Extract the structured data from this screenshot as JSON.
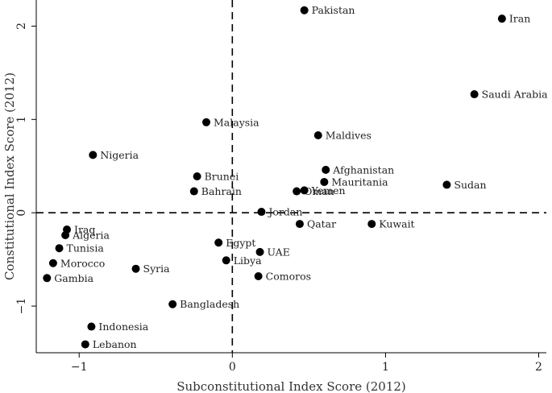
{
  "chart_data": {
    "type": "scatter",
    "xlabel": "Subconstitutional Index Score (2012)",
    "ylabel": "Constitutional Index Score (2012)",
    "xlim": [
      -1.28,
      2.05
    ],
    "ylim": [
      -1.5,
      2.28
    ],
    "xticks": [
      -1,
      0,
      1,
      2
    ],
    "yticks": [
      -1,
      0,
      1,
      2
    ],
    "reference_lines": {
      "x": 0,
      "y": 0,
      "style": "dashed"
    },
    "points": [
      {
        "label": "Pakistan",
        "x": 0.47,
        "y": 2.17
      },
      {
        "label": "Iran",
        "x": 1.76,
        "y": 2.08
      },
      {
        "label": "Saudi Arabia",
        "x": 1.58,
        "y": 1.27
      },
      {
        "label": "Malaysia",
        "x": -0.17,
        "y": 0.97
      },
      {
        "label": "Maldives",
        "x": 0.56,
        "y": 0.83
      },
      {
        "label": "Nigeria",
        "x": -0.91,
        "y": 0.62
      },
      {
        "label": "Afghanistan",
        "x": 0.61,
        "y": 0.46
      },
      {
        "label": "Brunei",
        "x": -0.23,
        "y": 0.39
      },
      {
        "label": "Mauritania",
        "x": 0.6,
        "y": 0.33
      },
      {
        "label": "Sudan",
        "x": 1.4,
        "y": 0.3
      },
      {
        "label": "Bahrain",
        "x": -0.25,
        "y": 0.23
      },
      {
        "label": "Oman",
        "x": 0.42,
        "y": 0.23
      },
      {
        "label": "Yemen",
        "x": 0.47,
        "y": 0.24
      },
      {
        "label": "Jordan",
        "x": 0.19,
        "y": 0.01
      },
      {
        "label": "Qatar",
        "x": 0.44,
        "y": -0.12
      },
      {
        "label": "Kuwait",
        "x": 0.91,
        "y": -0.12
      },
      {
        "label": "Iraq",
        "x": -1.08,
        "y": -0.18
      },
      {
        "label": "Algeria",
        "x": -1.09,
        "y": -0.24
      },
      {
        "label": "Egypt",
        "x": -0.09,
        "y": -0.32
      },
      {
        "label": "Tunisia",
        "x": -1.13,
        "y": -0.38
      },
      {
        "label": "UAE",
        "x": 0.18,
        "y": -0.42
      },
      {
        "label": "Libya",
        "x": -0.04,
        "y": -0.51
      },
      {
        "label": "Morocco",
        "x": -1.17,
        "y": -0.54
      },
      {
        "label": "Syria",
        "x": -0.63,
        "y": -0.6
      },
      {
        "label": "Comoros",
        "x": 0.17,
        "y": -0.68
      },
      {
        "label": "Gambia",
        "x": -1.21,
        "y": -0.7
      },
      {
        "label": "Bangladesh",
        "x": -0.39,
        "y": -0.98
      },
      {
        "label": "Indonesia",
        "x": -0.92,
        "y": -1.22
      },
      {
        "label": "Lebanon",
        "x": -0.96,
        "y": -1.41
      }
    ]
  }
}
